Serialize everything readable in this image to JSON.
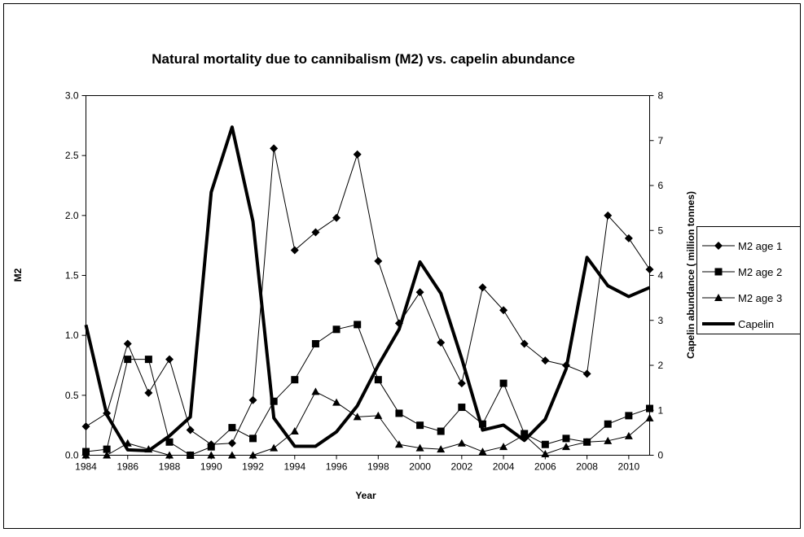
{
  "chart_data": {
    "type": "line",
    "title": "Natural mortality  due to cannibalism (M2) vs. capelin abundance",
    "x_label": "Year",
    "y_label": "M2",
    "y2_label": "Capelin abundance ( million tonnes)",
    "x": [
      1984,
      1985,
      1986,
      1987,
      1988,
      1989,
      1990,
      1991,
      1992,
      1993,
      1994,
      1995,
      1996,
      1997,
      1998,
      1999,
      2000,
      2001,
      2002,
      2003,
      2004,
      2005,
      2006,
      2007,
      2008,
      2009,
      2010,
      2011
    ],
    "xlim": [
      1984,
      2011
    ],
    "xticks": [
      1984,
      1986,
      1988,
      1990,
      1992,
      1994,
      1996,
      1998,
      2000,
      2002,
      2004,
      2006,
      2008,
      2010
    ],
    "ylim": [
      0,
      3
    ],
    "yticks": [
      {
        "value": 0,
        "label": "0.0"
      },
      {
        "value": 0.5,
        "label": "0.5"
      },
      {
        "value": 1,
        "label": "1.0"
      },
      {
        "value": 1.5,
        "label": "1.5"
      },
      {
        "value": 2,
        "label": "2.0"
      },
      {
        "value": 2.5,
        "label": "2.5"
      },
      {
        "value": 3,
        "label": "3.0"
      }
    ],
    "y2lim": [
      0,
      8
    ],
    "y2ticks": [
      0,
      1,
      2,
      3,
      4,
      5,
      6,
      7,
      8
    ],
    "grid": false,
    "legend": "right",
    "series": [
      {
        "name": "M2 age 1",
        "color": "#000000",
        "marker": "diamond",
        "width": 1,
        "values": [
          0.24,
          0.35,
          0.93,
          0.52,
          0.8,
          0.21,
          0.09,
          0.1,
          0.46,
          2.56,
          1.71,
          1.86,
          1.98,
          2.51,
          1.62,
          1.1,
          1.36,
          0.94,
          0.6,
          1.4,
          1.21,
          0.93,
          0.79,
          0.75,
          0.68,
          2.0,
          1.81,
          1.55
        ]
      },
      {
        "name": "M2 age 2",
        "color": "#000000",
        "marker": "square",
        "width": 1,
        "values": [
          0.03,
          0.05,
          0.8,
          0.8,
          0.11,
          0.0,
          0.07,
          0.23,
          0.14,
          0.45,
          0.63,
          0.93,
          1.05,
          1.09,
          0.63,
          0.35,
          0.25,
          0.2,
          0.4,
          0.26,
          0.6,
          0.18,
          0.09,
          0.14,
          0.11,
          0.26,
          0.33,
          0.39
        ]
      },
      {
        "name": "M2 age 3",
        "color": "#000000",
        "marker": "triangle",
        "width": 1,
        "values": [
          0.0,
          0.0,
          0.1,
          0.05,
          0.0,
          0.0,
          0.0,
          0.0,
          0.0,
          0.06,
          0.2,
          0.53,
          0.44,
          0.32,
          0.33,
          0.09,
          0.06,
          0.05,
          0.1,
          0.03,
          0.07,
          0.17,
          0.01,
          0.07,
          0.11,
          0.12,
          0.16,
          0.31
        ]
      },
      {
        "name": "Capelin",
        "color": "#000000",
        "marker": "none",
        "width": 4,
        "axis": "y2",
        "values": [
          2.9,
          0.9,
          0.12,
          0.1,
          0.43,
          0.85,
          5.85,
          7.3,
          5.2,
          0.83,
          0.2,
          0.2,
          0.52,
          1.1,
          2.0,
          2.8,
          4.3,
          3.6,
          2.15,
          0.56,
          0.67,
          0.33,
          0.8,
          1.92,
          4.4,
          3.77,
          3.53,
          3.73
        ]
      }
    ]
  }
}
